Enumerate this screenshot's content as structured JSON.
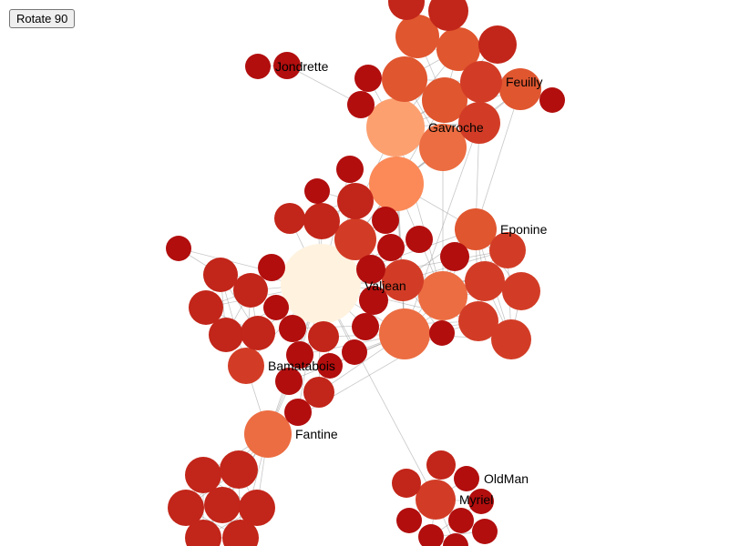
{
  "toolbar": {
    "rotate_label": "Rotate 90"
  },
  "graph": {
    "labels": {
      "valjean": "Valjean",
      "gavroche": "Gavroche",
      "eponine": "Eponine",
      "fantine": "Fantine",
      "myriel": "Myriel",
      "oldman": "OldMan",
      "jondrette": "Jondrette",
      "feuilly": "Feuilly",
      "bamatabois": "Bamatabois"
    },
    "colors": {
      "c0": "#b20e0e",
      "c1": "#c22519",
      "c2": "#d23c26",
      "c3": "#e0562f",
      "c4": "#ec6d42",
      "c5": "#fb8a58",
      "c6": "#fca070",
      "c7": "#fff3e0",
      "link": "#999999"
    }
  }
}
